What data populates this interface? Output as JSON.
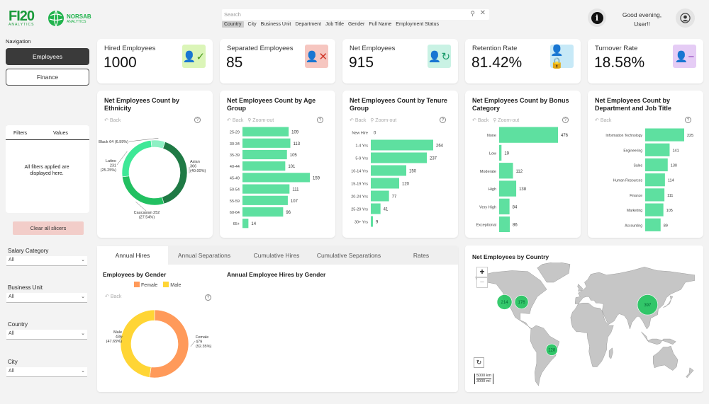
{
  "header": {
    "logo_text": "FI20",
    "logo_sub": "ANALYTICS",
    "brand_name": "NORSAB",
    "brand_sub": "ANALYTICS",
    "search_placeholder": "Search",
    "filter_chips": [
      "Country",
      "City",
      "Business Unit",
      "Department",
      "Job Title",
      "Gender",
      "Full Name",
      "Employment Status"
    ],
    "greeting_line1": "Good evening,",
    "greeting_line2": "User!!"
  },
  "navigation": {
    "title": "Navigation",
    "employees_label": "Employees",
    "finance_label": "Finance"
  },
  "filters_panel": {
    "col_filters": "Filters",
    "col_values": "Values",
    "message": "All filters applied are displayed here.",
    "clear_label": "Clear all slicers"
  },
  "slicers": [
    {
      "label": "Salary Category",
      "value": "All"
    },
    {
      "label": "Business Unit",
      "value": "All"
    },
    {
      "label": "Country",
      "value": "All"
    },
    {
      "label": "City",
      "value": "All"
    }
  ],
  "kpis": [
    {
      "title": "Hired Employees",
      "value": "1000",
      "icon": "user-check-icon",
      "bg": "#dbf5b8",
      "fg": "#4a9a1c"
    },
    {
      "title": "Separated Employees",
      "value": "85",
      "icon": "user-x-icon",
      "bg": "#f6c6c0",
      "fg": "#d0382a"
    },
    {
      "title": "Net Employees",
      "value": "915",
      "icon": "user-refresh-icon",
      "bg": "#c9f2e4",
      "fg": "#1a9a6a"
    },
    {
      "title": "Retention Rate",
      "value": "81.42%",
      "icon": "user-lock-icon",
      "bg": "#c7e9f7",
      "fg": "#2a8fc0"
    },
    {
      "title": "Turnover Rate",
      "value": "18.58%",
      "icon": "user-minus-icon",
      "bg": "#e5ccf5",
      "fg": "#8a3ab8"
    }
  ],
  "common": {
    "back": "Back",
    "zoom_out": "Zoom-out",
    "help": "?"
  },
  "chart_data": [
    {
      "type": "pie",
      "title": "Net Employees Count by Ethnicity",
      "categories": [
        "Asian",
        "Caucasian",
        "Latino",
        "Black"
      ],
      "values": [
        366,
        252,
        231,
        64
      ],
      "labels": [
        "Asian\n366\n(40.00%)",
        "Caucasian 252\n(27.54%)",
        "Latino\n231\n(25.25%)",
        "Black 64 (6.99%)"
      ],
      "colors": [
        "#1f7a45",
        "#22c061",
        "#3ee897",
        "#8ef0c4"
      ]
    },
    {
      "type": "bar",
      "title": "Net Employees Count by Age Group",
      "categories": [
        "25-29",
        "30-34",
        "35-39",
        "40-44",
        "45-49",
        "50-54",
        "55-59",
        "60-64",
        "65+"
      ],
      "values": [
        109,
        113,
        105,
        101,
        159,
        111,
        107,
        96,
        14
      ]
    },
    {
      "type": "bar",
      "title": "Net Employees Count by Tenure Group",
      "categories": [
        "New Hire",
        "1-4 Yrs",
        "5-9 Yrs",
        "10-14 Yrs",
        "15-19 Yrs",
        "20-24 Yrs",
        "25-29 Yrs",
        "30+ Yrs"
      ],
      "values": [
        0,
        264,
        237,
        150,
        120,
        77,
        41,
        9
      ]
    },
    {
      "type": "bar",
      "title": "Net Employees Count by Bonus Category",
      "categories": [
        "None",
        "Low",
        "Moderate",
        "High",
        "Very High",
        "Exceptional"
      ],
      "values": [
        476,
        19,
        112,
        138,
        84,
        86
      ]
    },
    {
      "type": "bar",
      "title": "Net Employees Count by Department and Job Title",
      "categories": [
        "Information Technology",
        "Engineering",
        "Sales",
        "Human Resources",
        "Finance",
        "Marketing",
        "Accounting"
      ],
      "values": [
        225,
        141,
        130,
        114,
        111,
        105,
        89
      ]
    },
    {
      "type": "pie",
      "title": "Employees by Gender",
      "categories": [
        "Female",
        "Male"
      ],
      "values": [
        479,
        436
      ],
      "labels": [
        "Female\n479\n(52.35%)",
        "Male\n436\n(47.65%)"
      ],
      "colors": [
        "#ff9a5a",
        "#ffd535"
      ]
    }
  ],
  "tabs": [
    "Annual Hires",
    "Annual Separations",
    "Cumulative Hires",
    "Cumulative Separations",
    "Rates"
  ],
  "hires_chart_title": "Annual Employee Hires by Gender",
  "map": {
    "title": "Net Employees by Country",
    "zoom_in": "+",
    "zoom_out": "−",
    "scale_km": "5000 km",
    "scale_mi": "3000 mi",
    "bubbles": [
      {
        "label": "214",
        "lon": -122,
        "lat": 38
      },
      {
        "label": "176",
        "lon": -95,
        "lat": 38
      },
      {
        "label": "128",
        "lon": -47,
        "lat": -15
      },
      {
        "label": "397",
        "lon": 105,
        "lat": 35
      }
    ]
  }
}
